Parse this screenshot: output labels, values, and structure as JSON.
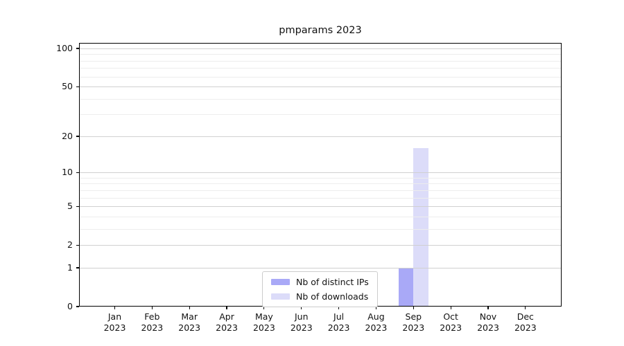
{
  "title": "pmparams 2023",
  "colors": {
    "distinct_ips_bar": "#a9a9f7",
    "downloads_bar": "#dcdcf9",
    "major_grid": "#d0d0d0",
    "minor_grid": "#ededed",
    "spine": "#000000",
    "text": "#111111",
    "legend_border": "#cccccc",
    "background": "#ffffff"
  },
  "chart_data": {
    "type": "bar",
    "title": "pmparams 2023",
    "categories": [
      "Jan",
      "Feb",
      "Mar",
      "Apr",
      "May",
      "Jun",
      "Jul",
      "Aug",
      "Sep",
      "Oct",
      "Nov",
      "Dec"
    ],
    "year_label": "2023",
    "series": [
      {
        "name": "Nb of distinct IPs",
        "color": "#a9a9f7",
        "values": [
          0,
          0,
          0,
          0,
          0,
          0,
          0,
          0,
          1,
          0,
          0,
          0
        ]
      },
      {
        "name": "Nb of downloads",
        "color": "#dcdcf9",
        "values": [
          0,
          0,
          0,
          0,
          0,
          0,
          0,
          0,
          16,
          0,
          0,
          0
        ]
      }
    ],
    "xlabel": "",
    "ylabel": "",
    "yscale": "log1p",
    "yticks": [
      0,
      1,
      2,
      5,
      10,
      20,
      50,
      100
    ],
    "minor_gridlines": [
      3,
      4,
      6,
      7,
      8,
      9,
      30,
      40,
      60,
      70,
      80,
      90
    ],
    "ylim": [
      0,
      110.5
    ],
    "grid": true,
    "legend_position": "lower center"
  }
}
